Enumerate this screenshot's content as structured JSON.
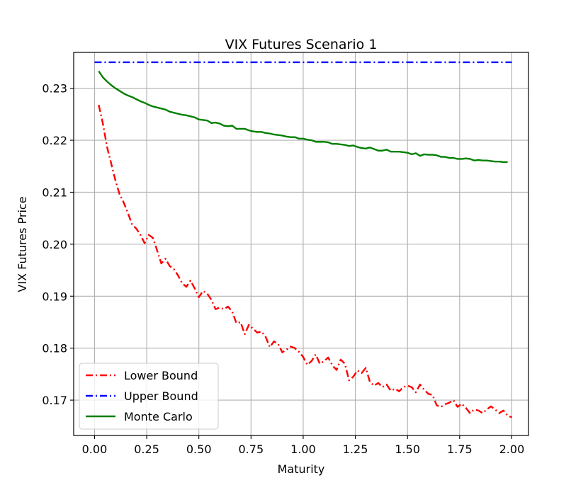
{
  "chart_data": {
    "type": "line",
    "title": "VIX Futures Scenario 1",
    "xlabel": "Maturity",
    "ylabel": "VIX Futures Price",
    "xlim": [
      -0.1,
      2.08
    ],
    "ylim": [
      0.1632,
      0.2369
    ],
    "xticks": [
      0.0,
      0.25,
      0.5,
      0.75,
      1.0,
      1.25,
      1.5,
      1.75,
      2.0
    ],
    "xtick_labels": [
      "0.00",
      "0.25",
      "0.50",
      "0.75",
      "1.00",
      "1.25",
      "1.50",
      "1.75",
      "2.00"
    ],
    "yticks": [
      0.17,
      0.18,
      0.19,
      0.2,
      0.21,
      0.22,
      0.23
    ],
    "ytick_labels": [
      "0.17",
      "0.18",
      "0.19",
      "0.20",
      "0.21",
      "0.22",
      "0.23"
    ],
    "grid": true,
    "legend_position": "lower-left",
    "series": [
      {
        "name": "Lower Bound",
        "color": "#ff0000",
        "style": "dashdot",
        "x": [
          0.02,
          0.04,
          0.06,
          0.08,
          0.1,
          0.12,
          0.14,
          0.16,
          0.18,
          0.2,
          0.22,
          0.24,
          0.26,
          0.28,
          0.3,
          0.32,
          0.34,
          0.36,
          0.38,
          0.4,
          0.42,
          0.44,
          0.46,
          0.48,
          0.5,
          0.52,
          0.54,
          0.56,
          0.58,
          0.6,
          0.62,
          0.64,
          0.66,
          0.68,
          0.7,
          0.72,
          0.74,
          0.76,
          0.78,
          0.8,
          0.82,
          0.84,
          0.86,
          0.88,
          0.9,
          0.92,
          0.94,
          0.96,
          0.98,
          1.0,
          1.02,
          1.04,
          1.06,
          1.08,
          1.1,
          1.12,
          1.14,
          1.16,
          1.18,
          1.2,
          1.22,
          1.24,
          1.26,
          1.28,
          1.3,
          1.32,
          1.34,
          1.36,
          1.38,
          1.4,
          1.42,
          1.44,
          1.46,
          1.48,
          1.5,
          1.52,
          1.54,
          1.56,
          1.58,
          1.6,
          1.62,
          1.64,
          1.66,
          1.68,
          1.7,
          1.72,
          1.74,
          1.76,
          1.78,
          1.8,
          1.82,
          1.84,
          1.86,
          1.88,
          1.9,
          1.92,
          1.94,
          1.96,
          1.98,
          2.0
        ],
        "values": [
          0.2268,
          0.2232,
          0.2187,
          0.2155,
          0.2123,
          0.2096,
          0.208,
          0.206,
          0.2038,
          0.203,
          0.2018,
          0.2002,
          0.2018,
          0.2012,
          0.1988,
          0.1963,
          0.1972,
          0.1958,
          0.1952,
          0.194,
          0.1925,
          0.1918,
          0.193,
          0.1915,
          0.1898,
          0.191,
          0.1905,
          0.1893,
          0.1875,
          0.1878,
          0.1875,
          0.188,
          0.187,
          0.1848,
          0.185,
          0.1827,
          0.1845,
          0.1837,
          0.183,
          0.1832,
          0.1822,
          0.1802,
          0.1813,
          0.1808,
          0.1792,
          0.1797,
          0.1803,
          0.18,
          0.1793,
          0.1783,
          0.1768,
          0.1775,
          0.1788,
          0.177,
          0.1775,
          0.1782,
          0.1767,
          0.1758,
          0.1778,
          0.177,
          0.1738,
          0.1745,
          0.1757,
          0.1752,
          0.1762,
          0.1735,
          0.1728,
          0.1733,
          0.1725,
          0.173,
          0.1718,
          0.1722,
          0.1717,
          0.1725,
          0.1728,
          0.1725,
          0.1715,
          0.173,
          0.172,
          0.1712,
          0.171,
          0.169,
          0.1687,
          0.1692,
          0.1695,
          0.17,
          0.1687,
          0.1693,
          0.1685,
          0.1675,
          0.1682,
          0.168,
          0.1675,
          0.1682,
          0.1688,
          0.1682,
          0.1675,
          0.168,
          0.167,
          0.1667
        ]
      },
      {
        "name": "Upper Bound",
        "color": "#0000ff",
        "style": "dashdot",
        "x": [
          0.0,
          2.0
        ],
        "values": [
          0.235,
          0.235
        ]
      },
      {
        "name": "Monte Carlo",
        "color": "#008000",
        "style": "solid",
        "x": [
          0.02,
          0.04,
          0.06,
          0.08,
          0.1,
          0.12,
          0.14,
          0.16,
          0.18,
          0.2,
          0.22,
          0.24,
          0.26,
          0.28,
          0.3,
          0.32,
          0.34,
          0.36,
          0.38,
          0.4,
          0.42,
          0.44,
          0.46,
          0.48,
          0.5,
          0.52,
          0.54,
          0.56,
          0.58,
          0.6,
          0.62,
          0.64,
          0.66,
          0.68,
          0.7,
          0.72,
          0.74,
          0.76,
          0.78,
          0.8,
          0.82,
          0.84,
          0.86,
          0.88,
          0.9,
          0.92,
          0.94,
          0.96,
          0.98,
          1.0,
          1.02,
          1.04,
          1.06,
          1.08,
          1.1,
          1.12,
          1.14,
          1.16,
          1.18,
          1.2,
          1.22,
          1.24,
          1.26,
          1.28,
          1.3,
          1.32,
          1.34,
          1.36,
          1.38,
          1.4,
          1.42,
          1.44,
          1.46,
          1.48,
          1.5,
          1.52,
          1.54,
          1.56,
          1.58,
          1.6,
          1.62,
          1.64,
          1.66,
          1.68,
          1.7,
          1.72,
          1.74,
          1.76,
          1.78,
          1.8,
          1.82,
          1.84,
          1.86,
          1.88,
          1.9,
          1.92,
          1.94,
          1.96,
          1.98
        ],
        "values": [
          0.2333,
          0.2321,
          0.2313,
          0.2306,
          0.23,
          0.2295,
          0.229,
          0.2286,
          0.2283,
          0.2279,
          0.2275,
          0.2272,
          0.2268,
          0.2265,
          0.2263,
          0.2261,
          0.2259,
          0.2255,
          0.2253,
          0.2251,
          0.2249,
          0.2248,
          0.2246,
          0.2244,
          0.224,
          0.2239,
          0.2238,
          0.2233,
          0.2234,
          0.2232,
          0.2228,
          0.2227,
          0.2228,
          0.2222,
          0.2222,
          0.2222,
          0.2219,
          0.2217,
          0.2216,
          0.2216,
          0.2214,
          0.2213,
          0.2211,
          0.221,
          0.2209,
          0.2207,
          0.2206,
          0.2206,
          0.2203,
          0.2203,
          0.2201,
          0.22,
          0.2197,
          0.2197,
          0.2197,
          0.2196,
          0.2193,
          0.2193,
          0.2192,
          0.2191,
          0.2189,
          0.219,
          0.2187,
          0.2185,
          0.2184,
          0.2186,
          0.2183,
          0.218,
          0.218,
          0.2182,
          0.2178,
          0.2178,
          0.2178,
          0.2177,
          0.2176,
          0.2173,
          0.2175,
          0.217,
          0.2173,
          0.2172,
          0.2172,
          0.2171,
          0.2168,
          0.2168,
          0.2166,
          0.2166,
          0.2164,
          0.2164,
          0.2165,
          0.2164,
          0.2161,
          0.2162,
          0.2161,
          0.2161,
          0.216,
          0.2159,
          0.2159,
          0.2158,
          0.2158
        ]
      }
    ]
  }
}
